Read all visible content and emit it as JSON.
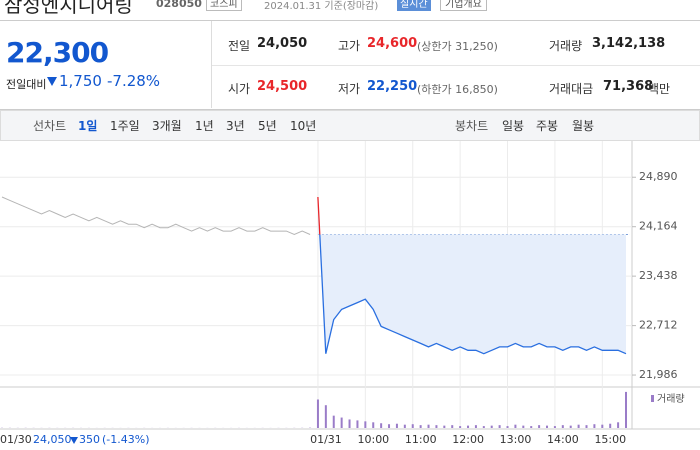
{
  "header": {
    "name": "삼성엔지니어링",
    "code": "028050",
    "market": "코스피",
    "date": "2024.01.31 기준(장마감)",
    "realtime": "실시간",
    "overview": "기업개요"
  },
  "price": {
    "current": "22,300",
    "change_label": "전일대비",
    "change": "1,750",
    "change_pct": "-7.28%"
  },
  "stats": {
    "rows": [
      [
        {
          "label": "전일",
          "value": "24,050"
        },
        {
          "label": "고가",
          "value": "24,600",
          "sub": "(상한가 31,250)"
        },
        {
          "label": "거래량",
          "value": "3,142,138"
        }
      ],
      [
        {
          "label": "시가",
          "value": "24,500"
        },
        {
          "label": "저가",
          "value": "22,250",
          "sub": "(하한가 16,850)"
        },
        {
          "label": "거래대금",
          "value": "71,368",
          "unit": "백만"
        }
      ]
    ]
  },
  "tabs": {
    "line_label": "선차트",
    "periods": [
      "1일",
      "1주일",
      "3개월",
      "1년",
      "3년",
      "5년",
      "10년"
    ],
    "candle_label": "봉차트",
    "candles": [
      "일봉",
      "주봉",
      "월봉"
    ]
  },
  "footer": {
    "price": "24,050",
    "change": "350",
    "pct": "(-1.43%)"
  },
  "chart_data": {
    "type": "line",
    "categories": [
      "01/30",
      null,
      null,
      null,
      null,
      null,
      null,
      null,
      null,
      null,
      null,
      null,
      null,
      null,
      null,
      null,
      null,
      null,
      null,
      null,
      null,
      null,
      null,
      null,
      null,
      null,
      null,
      null,
      null,
      null,
      null,
      null,
      null,
      null,
      null,
      null,
      null,
      null,
      null,
      null,
      "01/31",
      null,
      null,
      null,
      null,
      null,
      "10:00",
      null,
      null,
      null,
      null,
      null,
      "11:00",
      null,
      null,
      null,
      null,
      null,
      "12:00",
      null,
      null,
      null,
      null,
      null,
      "13:00",
      null,
      null,
      null,
      null,
      null,
      "14:00",
      null,
      null,
      null,
      null,
      null,
      "15:00",
      null,
      null,
      null
    ],
    "series": [
      {
        "color": "#b5b5b5",
        "values": [
          24600,
          24550,
          24500,
          24450,
          24400,
          24350,
          24400,
          24350,
          24300,
          24350,
          24300,
          24250,
          24300,
          24250,
          24200,
          24250,
          24200,
          24200,
          24150,
          24200,
          24150,
          24150,
          24200,
          24150,
          24100,
          24150,
          24100,
          24150,
          24100,
          24100,
          24150,
          24100,
          24100,
          24150,
          24100,
          24100,
          24100,
          24050,
          24100,
          24050,
          null,
          null,
          null,
          null,
          null,
          null,
          null,
          null,
          null,
          null,
          null,
          null,
          null,
          null,
          null,
          null,
          null,
          null,
          null,
          null,
          null,
          null,
          null,
          null,
          null,
          null,
          null,
          null,
          null,
          null,
          null,
          null,
          null,
          null,
          null,
          null,
          null,
          null,
          null,
          null
        ]
      },
      {
        "color": "#2a6fe0",
        "values": [
          null,
          null,
          null,
          null,
          null,
          null,
          null,
          null,
          null,
          null,
          null,
          null,
          null,
          null,
          null,
          null,
          null,
          null,
          null,
          null,
          null,
          null,
          null,
          null,
          null,
          null,
          null,
          null,
          null,
          null,
          null,
          null,
          null,
          null,
          null,
          null,
          null,
          null,
          null,
          null,
          24600,
          22300,
          22800,
          22950,
          23000,
          23050,
          23100,
          22950,
          22700,
          22650,
          22600,
          22550,
          22500,
          22450,
          22400,
          22450,
          22400,
          22350,
          22400,
          22350,
          22350,
          22300,
          22350,
          22400,
          22400,
          22450,
          22400,
          22400,
          22450,
          22400,
          22400,
          22350,
          22400,
          22400,
          22350,
          22400,
          22350,
          22350,
          22350,
          22300
        ]
      }
    ],
    "baseline": 24050,
    "up_color": "#e8262a",
    "area_color": "#e6eefb",
    "ylim": [
      21840,
      25290
    ],
    "yticks": [
      {
        "value": 24890,
        "label": "24,890"
      },
      {
        "value": 24164,
        "label": "24,164"
      },
      {
        "value": 23438,
        "label": "23,438"
      },
      {
        "value": 22712,
        "label": "22,712"
      },
      {
        "value": 21986,
        "label": "21,986"
      }
    ],
    "grid": true,
    "volume_label": "거래량",
    "volume_color": "#9a7cc8",
    "volume_ylim": [
      0,
      400000
    ],
    "volume": [
      6000,
      5000,
      4000,
      5000,
      4000,
      3000,
      4000,
      3000,
      3000,
      4000,
      3000,
      3000,
      2000,
      3000,
      3000,
      2000,
      3000,
      2000,
      3000,
      2000,
      2000,
      3000,
      2000,
      2000,
      3000,
      2000,
      2000,
      3000,
      2000,
      2000,
      3000,
      2000,
      2000,
      3000,
      2000,
      3000,
      3000,
      4000,
      5000,
      9000,
      300000,
      240000,
      130000,
      110000,
      90000,
      80000,
      70000,
      60000,
      50000,
      40000,
      45000,
      35000,
      40000,
      30000,
      35000,
      30000,
      25000,
      30000,
      20000,
      25000,
      30000,
      20000,
      25000,
      30000,
      20000,
      35000,
      25000,
      20000,
      30000,
      25000,
      20000,
      30000,
      25000,
      35000,
      30000,
      40000,
      35000,
      45000,
      60000,
      380000
    ]
  }
}
